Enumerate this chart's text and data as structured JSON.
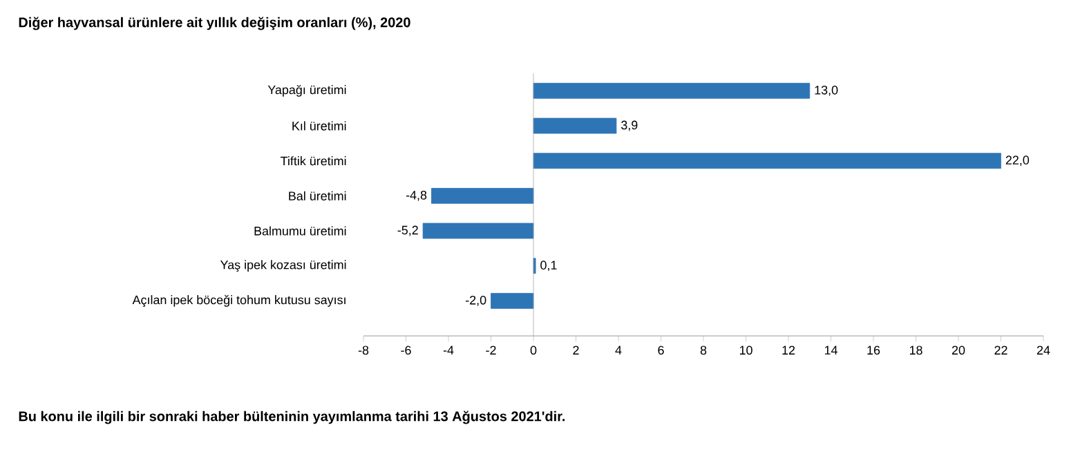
{
  "chart_data": {
    "type": "bar",
    "orientation": "horizontal",
    "title": "Diğer hayvansal ürünlere ait yıllık değişim oranları (%), 2020",
    "categories": [
      "Yapağı üretimi",
      "Kıl üretimi",
      "Tiftik üretimi",
      "Bal üretimi",
      "Balmumu üretimi",
      "Yaş ipek kozası üretimi",
      "Açılan ipek böceği tohum kutusu sayısı"
    ],
    "values": [
      13.0,
      3.9,
      22.0,
      -4.8,
      -5.2,
      0.1,
      -2.0
    ],
    "value_labels": [
      "13,0",
      "3,9",
      "22,0",
      "-4,8",
      "-5,2",
      "0,1",
      "-2,0"
    ],
    "color": "#2e75b6",
    "xlim": [
      -8,
      24
    ],
    "xticks": [
      -8,
      -6,
      -4,
      -2,
      0,
      2,
      4,
      6,
      8,
      10,
      12,
      14,
      16,
      18,
      20,
      22,
      24
    ],
    "grid": false,
    "ref_lines": [
      {
        "axis": "x",
        "value": 0,
        "color": "#a6a6a6"
      }
    ],
    "annotations": [
      "Bu konu ile ilgili bir sonraki haber bülteninin yayımlanma tarihi 13 Ağustos 2021'dir."
    ]
  }
}
